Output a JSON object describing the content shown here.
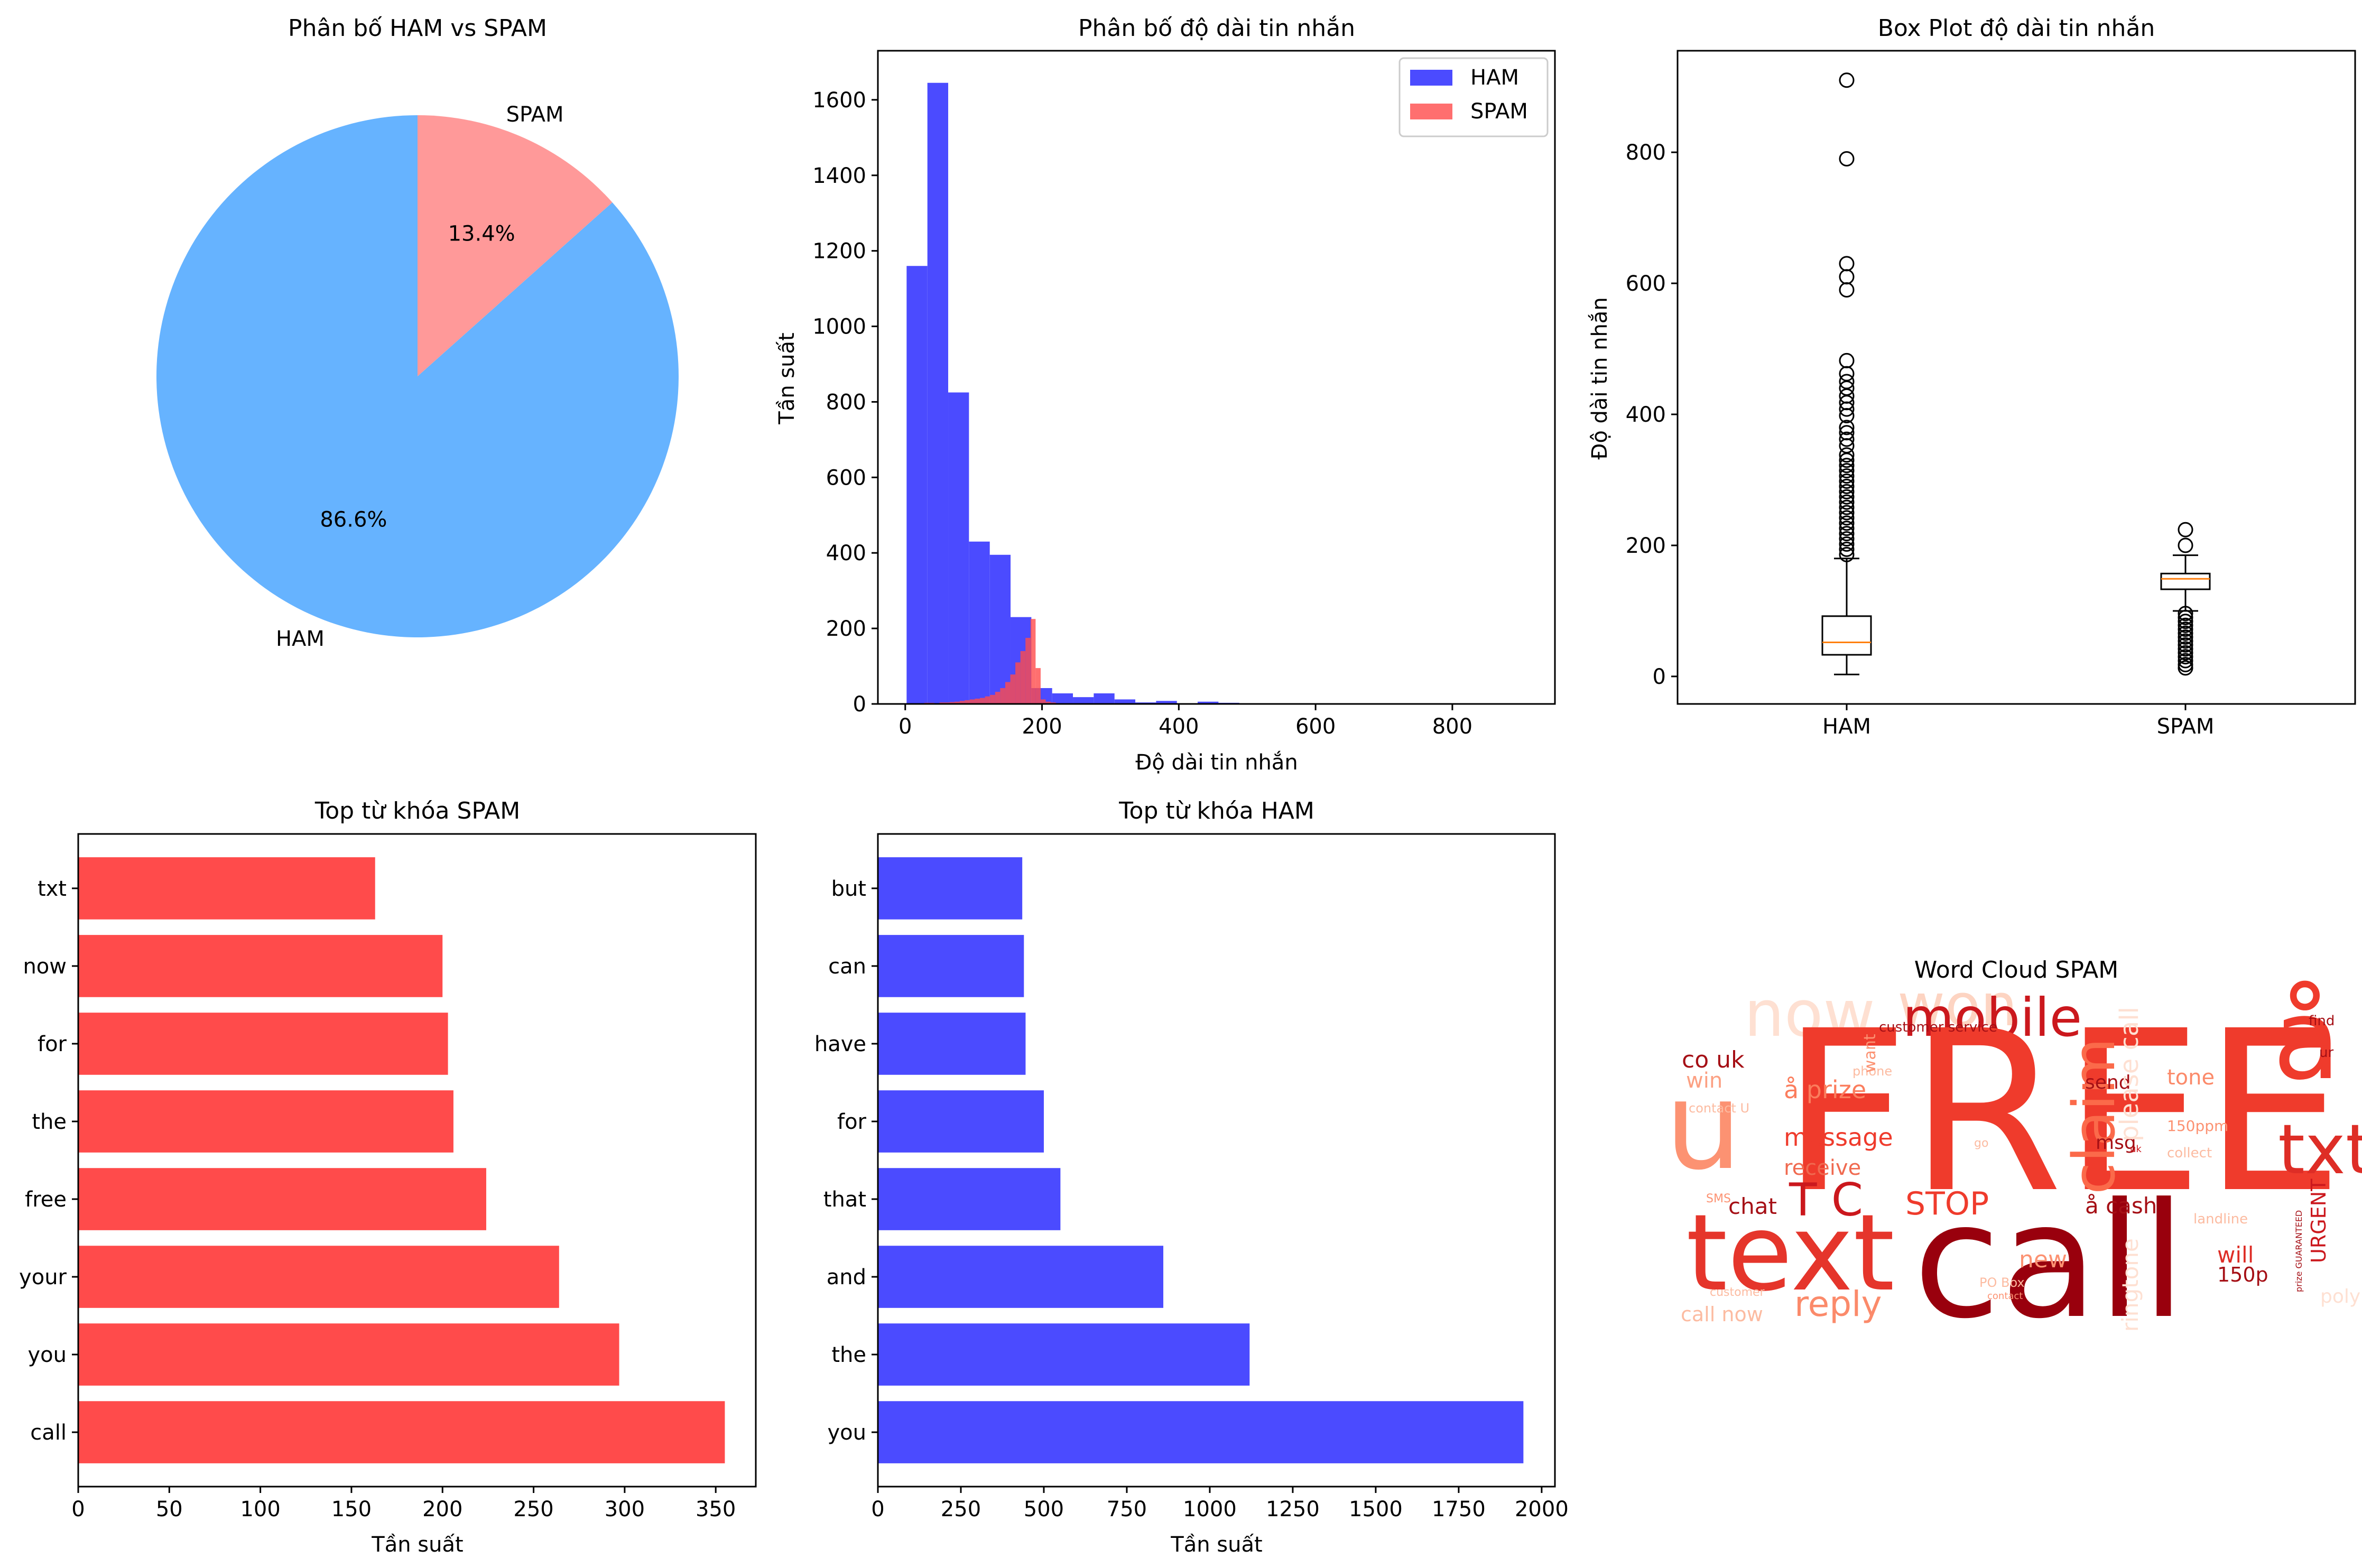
{
  "colors": {
    "ham_pie": "#66b3ff",
    "spam_pie": "#ff9999",
    "ham_bar": "#4b4bff",
    "spam_bar": "#ff4b4b",
    "median": "#ff7f0e"
  },
  "chart_data": [
    {
      "id": "pie",
      "type": "pie",
      "title": "Phân bố HAM vs SPAM",
      "slices": [
        {
          "label": "HAM",
          "value": 86.6,
          "pct_label": "86.6%"
        },
        {
          "label": "SPAM",
          "value": 13.4,
          "pct_label": "13.4%"
        }
      ]
    },
    {
      "id": "hist",
      "type": "bar",
      "title": "Phân bố độ dài tin nhắn",
      "xlabel": "Độ dài tin nhắn",
      "ylabel": "Tần suất",
      "xlim": [
        -40,
        950
      ],
      "ylim": [
        0,
        1730
      ],
      "xticks": [
        0,
        200,
        400,
        600,
        800
      ],
      "yticks": [
        0,
        200,
        400,
        600,
        800,
        1000,
        1200,
        1400,
        1600
      ],
      "legend": [
        "HAM",
        "SPAM"
      ],
      "legend_position": "top-right",
      "series": [
        {
          "name": "HAM",
          "bin_width": 30.4,
          "bin_start": 2,
          "values": [
            1160,
            1645,
            825,
            430,
            395,
            230,
            42,
            28,
            18,
            28,
            12,
            4,
            8,
            2,
            6,
            3,
            2,
            1,
            1,
            1,
            1,
            0,
            0,
            0,
            0,
            0,
            1,
            0,
            0,
            1
          ]
        },
        {
          "name": "SPAM",
          "bin_width": 7.4,
          "bin_start": 13,
          "values": [
            2,
            2,
            3,
            3,
            2,
            4,
            4,
            5,
            6,
            8,
            10,
            12,
            14,
            16,
            20,
            24,
            32,
            42,
            58,
            78,
            110,
            140,
            175,
            225,
            95,
            12,
            6,
            4,
            2,
            2
          ]
        }
      ]
    },
    {
      "id": "box",
      "type": "box",
      "title": "Box Plot độ dài tin nhắn",
      "ylabel": "Độ dài tin nhắn",
      "ylim": [
        -42,
        955
      ],
      "yticks": [
        0,
        200,
        400,
        600,
        800
      ],
      "boxes": [
        {
          "label": "HAM",
          "min": 3,
          "q1": 33,
          "median": 52,
          "q3": 92,
          "max": 180,
          "outliers": [
            910,
            790,
            630,
            610,
            590,
            482,
            462,
            450,
            440,
            428,
            418,
            408,
            398,
            380,
            372,
            362,
            352,
            338,
            330,
            322,
            314,
            306,
            298,
            290,
            282,
            274,
            266,
            258,
            250,
            242,
            234,
            226,
            218,
            210,
            202,
            194,
            186
          ]
        },
        {
          "label": "SPAM",
          "min": 100,
          "q1": 133,
          "median": 149,
          "q3": 157,
          "max": 185,
          "outliers": [
            224,
            200,
            96,
            90,
            84,
            78,
            72,
            66,
            60,
            54,
            48,
            42,
            36,
            30,
            24,
            18,
            13
          ]
        }
      ]
    },
    {
      "id": "spam_words",
      "type": "bar",
      "orientation": "horizontal",
      "title": "Top từ khóa SPAM",
      "xlabel": "Tần suất",
      "xlim": [
        0,
        372
      ],
      "xticks": [
        0,
        50,
        100,
        150,
        200,
        250,
        300,
        350
      ],
      "categories": [
        "call",
        "you",
        "your",
        "free",
        "the",
        "for",
        "now",
        "txt"
      ],
      "values": [
        355,
        297,
        264,
        224,
        206,
        203,
        200,
        163
      ]
    },
    {
      "id": "ham_words",
      "type": "bar",
      "orientation": "horizontal",
      "title": "Top từ khóa HAM",
      "xlabel": "Tần suất",
      "xlim": [
        0,
        2040
      ],
      "xticks": [
        0,
        250,
        500,
        750,
        1000,
        1250,
        1500,
        1750,
        2000
      ],
      "categories": [
        "you",
        "the",
        "and",
        "that",
        "for",
        "have",
        "can",
        "but"
      ],
      "values": [
        1945,
        1120,
        860,
        550,
        500,
        445,
        440,
        435
      ]
    }
  ],
  "wordcloud": {
    "title": "Word Cloud SPAM",
    "words": [
      {
        "text": "now",
        "color": "#fee0d2"
      },
      {
        "text": "won",
        "color": "#fdd4c2"
      },
      {
        "text": "mobile",
        "color": "#cb181d"
      },
      {
        "text": "å",
        "color": "#ef3b2c"
      },
      {
        "text": "FREE",
        "color": "#ef3b2c"
      },
      {
        "text": "u",
        "color": "#fc9272"
      },
      {
        "text": "txt",
        "color": "#de2d26"
      },
      {
        "text": "text",
        "color": "#e5352b"
      },
      {
        "text": "call",
        "color": "#99000d"
      },
      {
        "text": "claim",
        "color": "#fb6a4a"
      },
      {
        "text": "co uk",
        "color": "#a50f15"
      },
      {
        "text": "win",
        "color": "#fca082"
      },
      {
        "text": "å prize",
        "color": "#fb7d5d"
      },
      {
        "text": "message",
        "color": "#ef3b2c"
      },
      {
        "text": "receive",
        "color": "#f06a50"
      },
      {
        "text": "T C",
        "color": "#cb181d"
      },
      {
        "text": "STOP",
        "color": "#ef3b2c"
      },
      {
        "text": "å cash",
        "color": "#a50f15"
      },
      {
        "text": "chat",
        "color": "#a50f15"
      },
      {
        "text": "reply",
        "color": "#fb8a6a"
      },
      {
        "text": "call now",
        "color": "#fcbba1"
      },
      {
        "text": "customer service",
        "color": "#a50f15"
      },
      {
        "text": "find",
        "color": "#a50f15"
      },
      {
        "text": "ur",
        "color": "#a50f15"
      },
      {
        "text": "tone",
        "color": "#fb8a6a"
      },
      {
        "text": "send",
        "color": "#a50f15"
      },
      {
        "text": "msg",
        "color": "#a50f15"
      },
      {
        "text": "uk",
        "color": "#cb181d"
      },
      {
        "text": "150ppm",
        "color": "#fc9272"
      },
      {
        "text": "collect",
        "color": "#fcbba1"
      },
      {
        "text": "URGENT",
        "color": "#cb181d"
      },
      {
        "text": "landline",
        "color": "#fcbba1"
      },
      {
        "text": "will",
        "color": "#de2d26"
      },
      {
        "text": "150p",
        "color": "#a50f15"
      },
      {
        "text": "poly",
        "color": "#fee0d2"
      },
      {
        "text": "new",
        "color": "#fc9272"
      },
      {
        "text": "PO Box",
        "color": "#fcbba1"
      },
      {
        "text": "contact",
        "color": "#fc9272"
      },
      {
        "text": "ringtone",
        "color": "#fee0d2"
      },
      {
        "text": "please call",
        "color": "#fee0d2"
      },
      {
        "text": "phone",
        "color": "#fcbba1"
      },
      {
        "text": "want",
        "color": "#fc9272"
      },
      {
        "text": "contact U",
        "color": "#fcbba1"
      },
      {
        "text": "SMS",
        "color": "#fc9272"
      },
      {
        "text": "go",
        "color": "#fcbba1"
      },
      {
        "text": "prize GUARANTEED",
        "color": "#a50f15"
      },
      {
        "text": "customer",
        "color": "#fcbba1"
      }
    ]
  }
}
